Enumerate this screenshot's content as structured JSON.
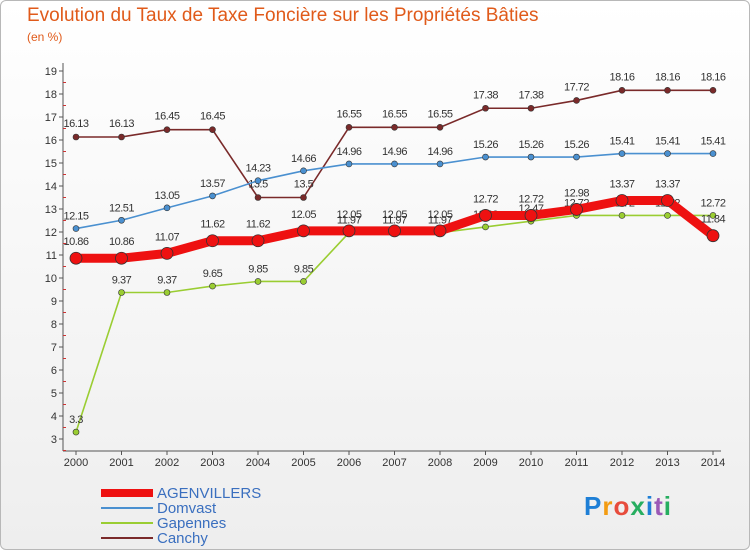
{
  "chart_data": {
    "type": "line",
    "title": "Evolution du Taux de Taxe Foncière sur les Propriétés Bâties",
    "subtitle": "(en %)",
    "x": [
      "2000",
      "2001",
      "2002",
      "2003",
      "2004",
      "2005",
      "2006",
      "2007",
      "2008",
      "2009",
      "2010",
      "2011",
      "2012",
      "2013",
      "2014"
    ],
    "ylim": [
      3,
      19
    ],
    "yticks": [
      3,
      4,
      5,
      6,
      7,
      8,
      9,
      10,
      11,
      12,
      13,
      14,
      15,
      16,
      17,
      18,
      19
    ],
    "grid": false,
    "legend_position": "bottom-left",
    "series": [
      {
        "name": "Canchy",
        "color": "#7a2a2a",
        "values": [
          16.13,
          16.13,
          16.45,
          16.45,
          13.5,
          13.5,
          16.55,
          16.55,
          16.55,
          17.38,
          17.38,
          17.72,
          18.16,
          18.16,
          18.16
        ],
        "labels": [
          "16.13",
          "16.13",
          "16.45",
          "16.45",
          "13.5",
          "13.5",
          "16.55",
          "16.55",
          "16.55",
          "17.38",
          "17.38",
          "17.72",
          "18.16",
          "18.16",
          "18.16"
        ]
      },
      {
        "name": "Domvast",
        "color": "#4a90d0",
        "values": [
          12.15,
          12.51,
          13.05,
          13.57,
          14.23,
          14.66,
          14.96,
          14.96,
          14.96,
          15.26,
          15.26,
          15.26,
          15.41,
          15.41,
          15.41
        ],
        "labels": [
          "12.15",
          "12.51",
          "13.05",
          "13.57",
          "14.23",
          "14.66",
          "14.96",
          "14.96",
          "14.96",
          "15.26",
          "15.26",
          "15.26",
          "15.41",
          "15.41",
          "15.41"
        ]
      },
      {
        "name": "Gapennes",
        "color": "#9acd32",
        "values": [
          3.3,
          9.37,
          9.37,
          9.65,
          9.85,
          9.85,
          11.97,
          11.97,
          11.97,
          12.22,
          12.47,
          12.72,
          12.72,
          12.72,
          12.72
        ],
        "labels": [
          "3.3",
          "9.37",
          "9.37",
          "9.65",
          "9.85",
          "9.85",
          "11.97",
          "11.97",
          "11.97",
          "12.22",
          "12.47",
          "12.72",
          "12.72",
          "12.72",
          "12.72"
        ]
      },
      {
        "name": "AGENVILLERS",
        "color": "#ee1111",
        "values": [
          10.86,
          10.86,
          11.07,
          11.62,
          11.62,
          12.05,
          12.05,
          12.05,
          12.05,
          12.72,
          12.72,
          12.98,
          13.37,
          13.37,
          11.84
        ],
        "labels": [
          "10.86",
          "10.86",
          "11.07",
          "11.62",
          "11.62",
          "12.05",
          "12.05",
          "12.05",
          "12.05",
          "12.72",
          "12.72",
          "12.98",
          "13.37",
          "13.37",
          "11.84"
        ]
      }
    ],
    "legend": [
      "AGENVILLERS",
      "Domvast",
      "Gapennes",
      "Canchy"
    ]
  },
  "branding": {
    "logo_text": "Proxiti",
    "colors": [
      "#1e7fd6",
      "#f39c12",
      "#e74c3c",
      "#27ae60",
      "#1e7fd6",
      "#9b59b6",
      "#27ae60"
    ]
  }
}
